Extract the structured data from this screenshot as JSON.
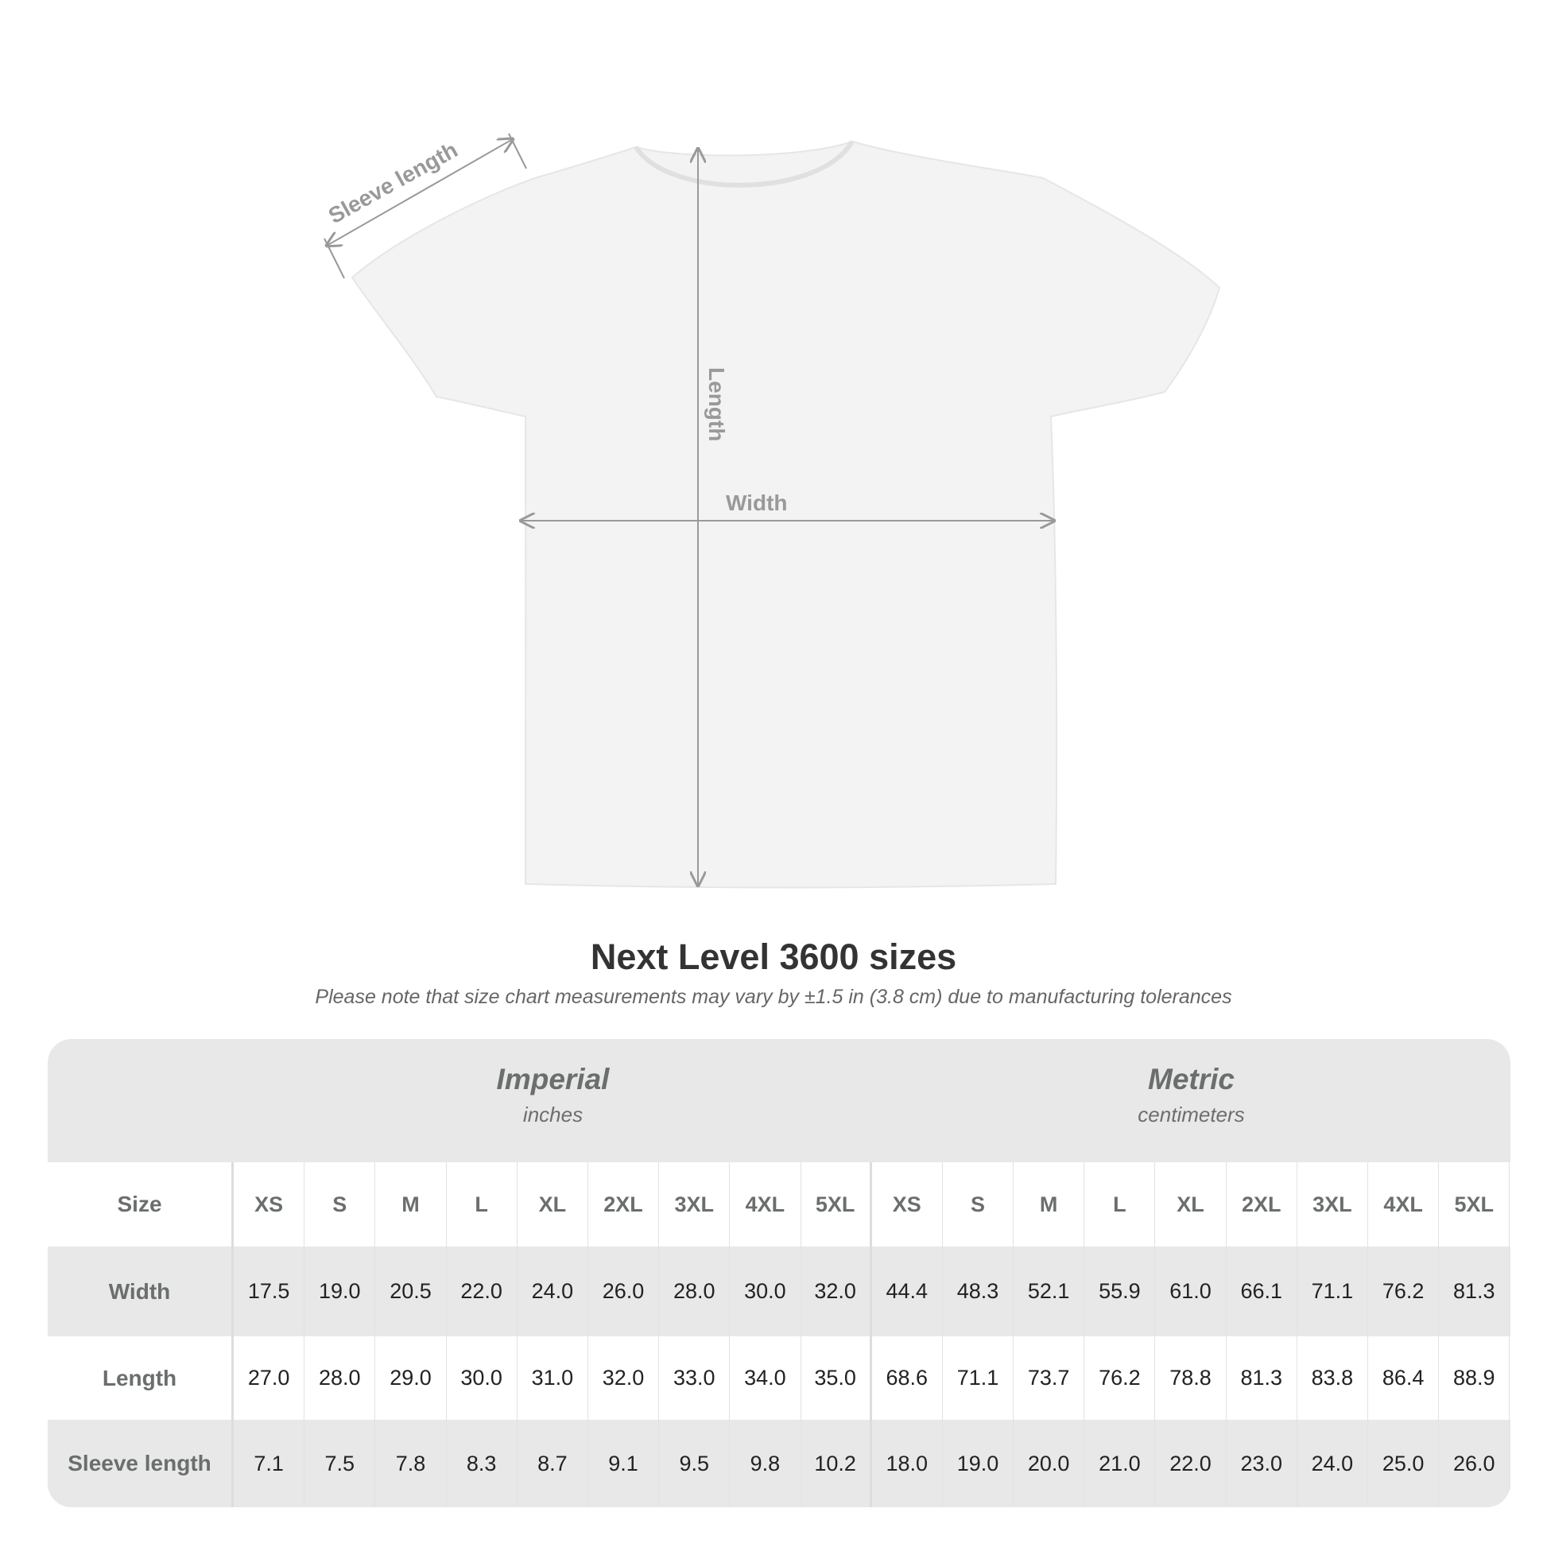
{
  "diagram": {
    "labels": {
      "sleeve": "Sleeve length",
      "length": "Length",
      "width": "Width"
    },
    "shirt_color": "#f2f2f2",
    "arrow_color": "#999999"
  },
  "title": "Next Level 3600 sizes",
  "note": "Please note that size chart measurements may vary by ±1.5 in (3.8 cm) due to manufacturing tolerances",
  "table": {
    "imperial": {
      "heading": "Imperial",
      "unit": "inches"
    },
    "metric": {
      "heading": "Metric",
      "unit": "centimeters"
    },
    "size_label": "Size",
    "sizes": [
      "XS",
      "S",
      "M",
      "L",
      "XL",
      "2XL",
      "3XL",
      "4XL",
      "5XL"
    ],
    "rows": [
      {
        "label": "Width",
        "imperial": [
          "17.5",
          "19.0",
          "20.5",
          "22.0",
          "24.0",
          "26.0",
          "28.0",
          "30.0",
          "32.0"
        ],
        "metric": [
          "44.4",
          "48.3",
          "52.1",
          "55.9",
          "61.0",
          "66.1",
          "71.1",
          "76.2",
          "81.3"
        ]
      },
      {
        "label": "Length",
        "imperial": [
          "27.0",
          "28.0",
          "29.0",
          "30.0",
          "31.0",
          "32.0",
          "33.0",
          "34.0",
          "35.0"
        ],
        "metric": [
          "68.6",
          "71.1",
          "73.7",
          "76.2",
          "78.8",
          "81.3",
          "83.8",
          "86.4",
          "88.9"
        ]
      },
      {
        "label": "Sleeve length",
        "imperial": [
          "7.1",
          "7.5",
          "7.8",
          "8.3",
          "8.7",
          "9.1",
          "9.5",
          "9.8",
          "10.2"
        ],
        "metric": [
          "18.0",
          "19.0",
          "20.0",
          "21.0",
          "22.0",
          "23.0",
          "24.0",
          "25.0",
          "26.0"
        ]
      }
    ]
  }
}
